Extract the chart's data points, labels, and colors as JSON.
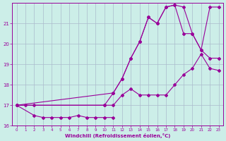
{
  "xlabel": "Windchill (Refroidissement éolien,°C)",
  "bg_color": "#cceee8",
  "line_color": "#990099",
  "grid_color": "#aabbcc",
  "xlim": [
    -0.5,
    23.5
  ],
  "ylim": [
    16,
    22
  ],
  "yticks": [
    16,
    17,
    18,
    19,
    20,
    21
  ],
  "xticks": [
    0,
    1,
    2,
    3,
    4,
    5,
    6,
    7,
    8,
    9,
    10,
    11,
    12,
    13,
    14,
    15,
    16,
    17,
    18,
    19,
    20,
    21,
    22,
    23
  ],
  "series1_x": [
    0,
    2,
    3,
    4,
    5,
    6,
    7,
    8,
    9,
    10,
    11
  ],
  "series1_y": [
    17.0,
    16.5,
    16.4,
    16.4,
    16.4,
    16.4,
    16.5,
    16.4,
    16.4,
    16.4,
    16.4
  ],
  "series2_x": [
    0,
    1,
    2,
    10,
    11,
    12,
    13,
    14,
    15,
    16,
    17,
    18,
    19,
    20,
    21,
    22,
    23
  ],
  "series2_y": [
    17.0,
    17.0,
    17.0,
    17.0,
    17.0,
    17.5,
    17.8,
    17.5,
    17.5,
    17.5,
    17.5,
    18.0,
    18.5,
    18.8,
    19.5,
    18.8,
    18.7
  ],
  "series3_x": [
    0,
    10,
    11,
    12,
    13,
    14,
    15,
    16,
    17,
    18,
    19,
    20,
    21,
    22,
    23
  ],
  "series3_y": [
    17.0,
    17.0,
    17.6,
    18.3,
    19.3,
    20.1,
    21.3,
    21.0,
    21.8,
    21.9,
    20.5,
    20.5,
    19.7,
    19.3,
    19.3
  ],
  "series4_x": [
    0,
    11,
    12,
    13,
    14,
    15,
    16,
    17,
    18,
    19,
    20,
    21,
    22,
    23
  ],
  "series4_y": [
    17.0,
    17.6,
    18.3,
    19.3,
    20.1,
    21.3,
    21.0,
    21.8,
    21.9,
    21.8,
    20.5,
    19.7,
    21.8,
    21.8
  ]
}
